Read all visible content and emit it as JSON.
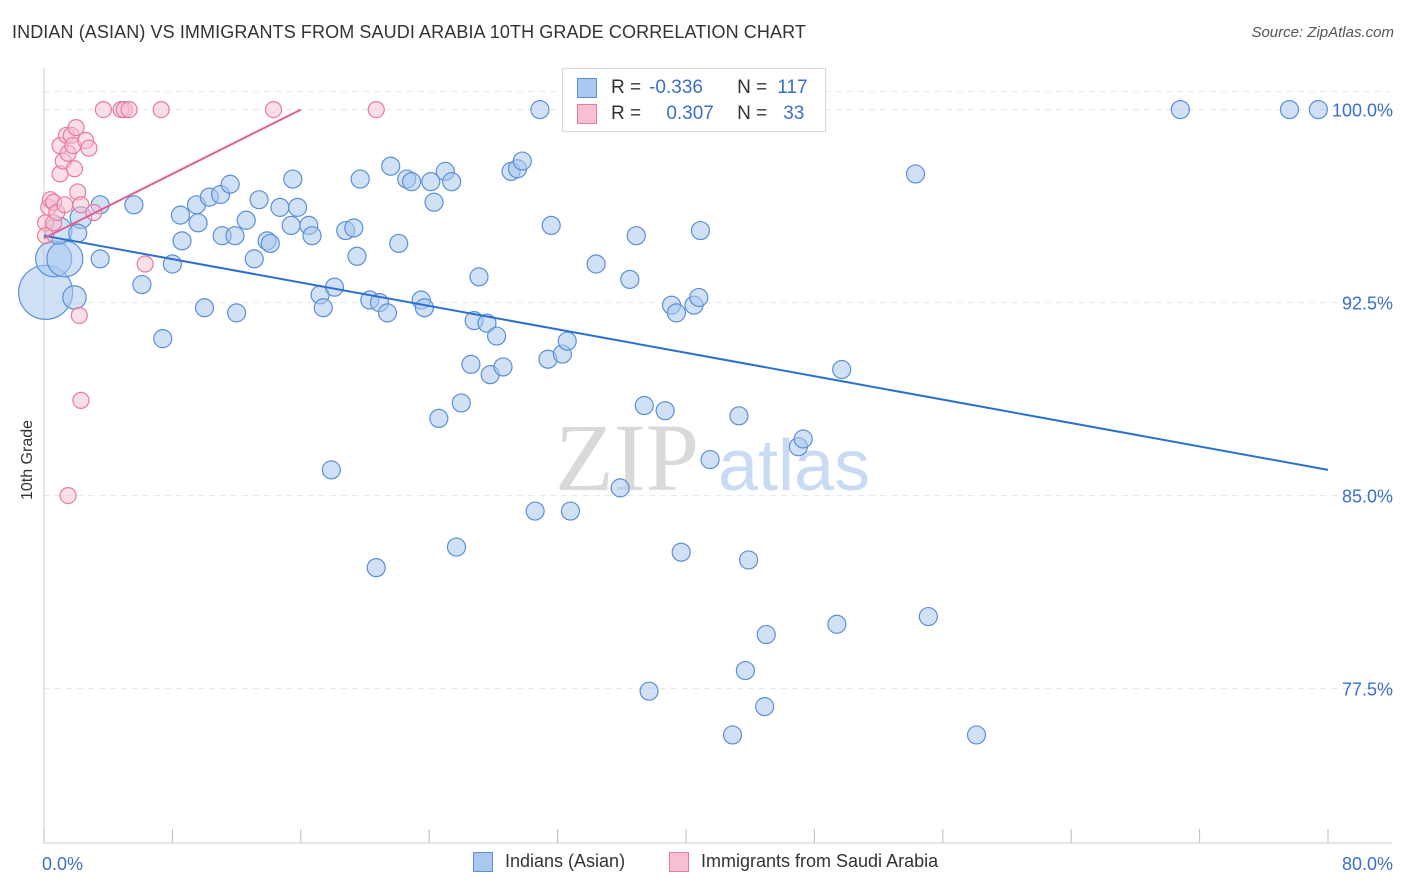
{
  "title": "INDIAN (ASIAN) VS IMMIGRANTS FROM SAUDI ARABIA 10TH GRADE CORRELATION CHART",
  "source": "Source: ZipAtlas.com",
  "watermark": {
    "zip": "ZIP",
    "atlas": "atlas"
  },
  "legend": {
    "rows": [
      {
        "r_label": "R =",
        "r_value": "-0.336",
        "n_label": "N =",
        "n_value": "117"
      },
      {
        "r_label": "R =",
        "r_value": "0.307",
        "n_label": "N =",
        "n_value": "33"
      }
    ]
  },
  "bottom_legend": [
    "Indians (Asian)",
    "Immigrants from Saudi Arabia"
  ],
  "colors": {
    "blue_fill": "#a9c8ee",
    "blue_stroke": "#5b8fd6",
    "blue_line": "#2a6fcf",
    "pink_fill": "#f7bfd0",
    "pink_stroke": "#e87aa0",
    "pink_line": "#e0608e",
    "axis_text": "#3a6fc9",
    "grid": "#e6e6e6"
  },
  "chart_data": {
    "type": "scatter",
    "title": "INDIAN (ASIAN) VS IMMIGRANTS FROM SAUDI ARABIA 10TH GRADE CORRELATION CHART",
    "xlabel": "",
    "ylabel": "10th Grade",
    "xlim": [
      0,
      80
    ],
    "ylim": [
      71.5,
      101.5
    ],
    "x_tick_labels": [
      "0.0%",
      "80.0%"
    ],
    "y_ticks": [
      77.5,
      85.0,
      92.5,
      100.0
    ],
    "y_tick_labels": [
      "77.5%",
      "85.0%",
      "92.5%",
      "100.0%"
    ],
    "series": [
      {
        "name": "Indians (Asian)",
        "color": "#a9c8ee",
        "trend": {
          "x": [
            0,
            80
          ],
          "y": [
            95.1,
            86.0
          ]
        },
        "points": [
          [
            0.1,
            92.9,
            3
          ],
          [
            0.6,
            94.2,
            2
          ],
          [
            1.3,
            94.2,
            2
          ],
          [
            0.9,
            95.3,
            1.5
          ],
          [
            1.9,
            92.7,
            1.3
          ],
          [
            2.3,
            95.8,
            1.2
          ],
          [
            3.5,
            96.3,
            1
          ],
          [
            5.6,
            96.3,
            1
          ],
          [
            2.1,
            95.2,
            1
          ],
          [
            3.5,
            94.2,
            1
          ],
          [
            6.1,
            93.2,
            1
          ],
          [
            7.4,
            91.1,
            1
          ],
          [
            8.0,
            94.0,
            1
          ],
          [
            8.5,
            95.9,
            1
          ],
          [
            8.6,
            94.9,
            1
          ],
          [
            9.5,
            96.3,
            1
          ],
          [
            9.6,
            95.6,
            1
          ],
          [
            10.0,
            92.3,
            1
          ],
          [
            10.3,
            96.6,
            1
          ],
          [
            11.0,
            96.7,
            1
          ],
          [
            11.1,
            95.1,
            1
          ],
          [
            11.6,
            97.1,
            1
          ],
          [
            11.9,
            95.1,
            1
          ],
          [
            12.0,
            92.1,
            1
          ],
          [
            12.6,
            95.7,
            1
          ],
          [
            13.1,
            94.2,
            1
          ],
          [
            13.4,
            96.5,
            1
          ],
          [
            13.9,
            94.9,
            1
          ],
          [
            14.1,
            94.8,
            1
          ],
          [
            14.7,
            96.2,
            1
          ],
          [
            15.4,
            95.5,
            1
          ],
          [
            15.5,
            97.3,
            1
          ],
          [
            15.8,
            96.2,
            1
          ],
          [
            16.5,
            95.5,
            1
          ],
          [
            16.7,
            95.1,
            1
          ],
          [
            17.2,
            92.8,
            1
          ],
          [
            17.4,
            92.3,
            1
          ],
          [
            17.9,
            86.0,
            1
          ],
          [
            18.1,
            93.1,
            1
          ],
          [
            18.8,
            95.3,
            1
          ],
          [
            19.3,
            95.4,
            1
          ],
          [
            19.5,
            94.3,
            1
          ],
          [
            19.7,
            97.3,
            1
          ],
          [
            20.3,
            92.6,
            1
          ],
          [
            20.7,
            82.2,
            1
          ],
          [
            20.9,
            92.5,
            1
          ],
          [
            21.4,
            92.1,
            1
          ],
          [
            21.6,
            97.8,
            1
          ],
          [
            22.1,
            94.8,
            1
          ],
          [
            22.6,
            97.3,
            1
          ],
          [
            22.9,
            97.2,
            1
          ],
          [
            23.5,
            92.6,
            1
          ],
          [
            23.7,
            92.3,
            1
          ],
          [
            24.1,
            97.2,
            1
          ],
          [
            24.3,
            96.4,
            1
          ],
          [
            24.6,
            88.0,
            1
          ],
          [
            25.0,
            97.6,
            1
          ],
          [
            25.4,
            97.2,
            1
          ],
          [
            25.7,
            83.0,
            1
          ],
          [
            26.0,
            88.6,
            1
          ],
          [
            26.6,
            90.1,
            1
          ],
          [
            26.8,
            91.8,
            1
          ],
          [
            27.1,
            93.5,
            1
          ],
          [
            27.6,
            91.7,
            1
          ],
          [
            27.8,
            89.7,
            1
          ],
          [
            28.2,
            91.2,
            1
          ],
          [
            28.6,
            90.0,
            1
          ],
          [
            29.1,
            97.6,
            1
          ],
          [
            29.5,
            97.7,
            1
          ],
          [
            29.8,
            98.0,
            1
          ],
          [
            30.6,
            84.4,
            1
          ],
          [
            30.9,
            100.0,
            1
          ],
          [
            31.4,
            90.3,
            1
          ],
          [
            31.6,
            95.5,
            1
          ],
          [
            32.3,
            90.5,
            1
          ],
          [
            32.6,
            91.0,
            1
          ],
          [
            32.8,
            84.4,
            1
          ],
          [
            34.4,
            94.0,
            1
          ],
          [
            35.9,
            85.3,
            1
          ],
          [
            36.5,
            93.4,
            1
          ],
          [
            36.9,
            95.1,
            1
          ],
          [
            37.4,
            88.5,
            1
          ],
          [
            37.7,
            77.4,
            1
          ],
          [
            38.7,
            88.3,
            1
          ],
          [
            39.1,
            92.4,
            1
          ],
          [
            39.4,
            92.1,
            1
          ],
          [
            39.7,
            82.8,
            1
          ],
          [
            40.5,
            92.4,
            1
          ],
          [
            40.8,
            92.7,
            1
          ],
          [
            40.9,
            95.3,
            1
          ],
          [
            41.5,
            86.4,
            1
          ],
          [
            42.9,
            75.7,
            1
          ],
          [
            43.3,
            88.1,
            1
          ],
          [
            43.7,
            78.2,
            1
          ],
          [
            43.9,
            82.5,
            1
          ],
          [
            44.9,
            76.8,
            1
          ],
          [
            45.0,
            79.6,
            1
          ],
          [
            45.6,
            100.0,
            1
          ],
          [
            47.0,
            86.9,
            1
          ],
          [
            47.3,
            87.2,
            1
          ],
          [
            49.4,
            80.0,
            1
          ],
          [
            49.7,
            89.9,
            1
          ],
          [
            54.3,
            97.5,
            1
          ],
          [
            55.1,
            80.3,
            1
          ],
          [
            58.1,
            75.7,
            1
          ],
          [
            70.8,
            100.0,
            1
          ],
          [
            77.6,
            100.0,
            1
          ],
          [
            79.4,
            100.0,
            1
          ]
        ]
      },
      {
        "name": "Immigrants from Saudi Arabia",
        "color": "#f7bfd0",
        "trend": {
          "x": [
            0,
            16
          ],
          "y": [
            95.0,
            100.0
          ]
        },
        "points": [
          [
            0.1,
            95.6
          ],
          [
            0.1,
            95.1
          ],
          [
            0.3,
            96.2
          ],
          [
            0.4,
            96.5
          ],
          [
            0.6,
            96.4
          ],
          [
            0.6,
            95.6
          ],
          [
            0.8,
            96.0
          ],
          [
            1.0,
            97.5
          ],
          [
            1.0,
            98.6
          ],
          [
            1.2,
            98.0
          ],
          [
            1.3,
            96.3
          ],
          [
            1.4,
            99.0
          ],
          [
            1.5,
            98.3
          ],
          [
            1.7,
            99.0
          ],
          [
            1.8,
            98.6
          ],
          [
            1.9,
            97.7
          ],
          [
            2.0,
            99.3
          ],
          [
            2.1,
            96.8
          ],
          [
            2.2,
            92.0
          ],
          [
            2.3,
            96.3
          ],
          [
            2.3,
            88.7
          ],
          [
            2.6,
            98.8
          ],
          [
            2.8,
            98.5
          ],
          [
            3.1,
            96.0
          ],
          [
            3.7,
            100.0
          ],
          [
            4.8,
            100.0
          ],
          [
            5.0,
            100.0
          ],
          [
            5.3,
            100.0
          ],
          [
            6.3,
            94.0
          ],
          [
            7.3,
            100.0
          ],
          [
            14.3,
            100.0
          ],
          [
            20.7,
            100.0
          ],
          [
            1.5,
            85.0
          ]
        ]
      }
    ]
  }
}
